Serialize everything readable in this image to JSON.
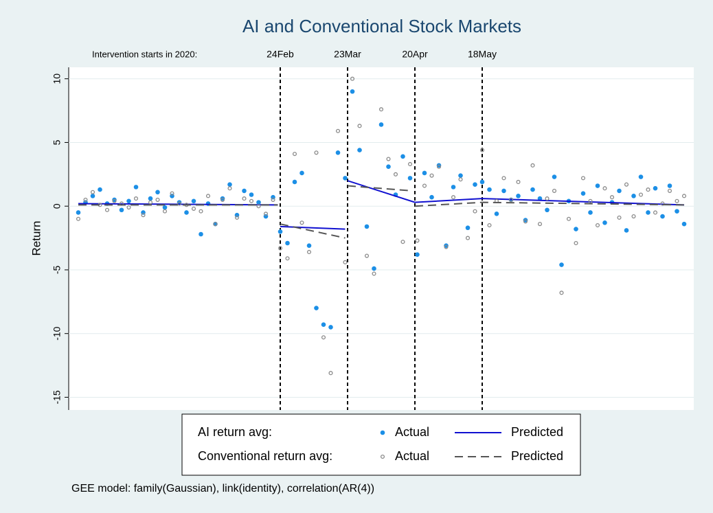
{
  "chart_data": {
    "type": "scatter",
    "title": "AI and Conventional Stock Markets",
    "y_label": "Return",
    "annotation": "Intervention starts in 2020:",
    "note": "GEE model: family(Gaussian), link(identity), correlation(AR(4))",
    "xlim": [
      -88,
      172
    ],
    "ylim": [
      -16,
      10.9
    ],
    "yticks": [
      10,
      5,
      0,
      -5,
      -10,
      -15
    ],
    "grid": true,
    "vlines": [
      {
        "x": 0,
        "label": "24Feb"
      },
      {
        "x": 28,
        "label": "23Mar"
      },
      {
        "x": 56,
        "label": "20Apr"
      },
      {
        "x": 84,
        "label": "18May"
      }
    ],
    "x": [
      -84,
      -81,
      -78,
      -75,
      -72,
      -69,
      -66,
      -63,
      -60,
      -57,
      -54,
      -51,
      -48,
      -45,
      -42,
      -39,
      -36,
      -33,
      -30,
      -27,
      -24,
      -21,
      -18,
      -15,
      -12,
      -9,
      -6,
      -3,
      0,
      3,
      6,
      9,
      12,
      15,
      18,
      21,
      24,
      27,
      30,
      33,
      36,
      39,
      42,
      45,
      48,
      51,
      54,
      57,
      60,
      63,
      66,
      69,
      72,
      75,
      78,
      81,
      84,
      87,
      90,
      93,
      96,
      99,
      102,
      105,
      108,
      111,
      114,
      117,
      120,
      123,
      126,
      129,
      132,
      135,
      138,
      141,
      144,
      147,
      150,
      153,
      156,
      159,
      162,
      165,
      168
    ],
    "groups": [
      {
        "label": "AI return avg:",
        "series": [
          {
            "name": "Actual",
            "style": "points",
            "color": "#1c8fe6",
            "values": [
              -0.5,
              0.3,
              0.8,
              1.3,
              0.2,
              0.5,
              -0.3,
              0.4,
              1.5,
              -0.5,
              0.6,
              1.1,
              -0.1,
              0.8,
              0.3,
              -0.5,
              0.4,
              -2.2,
              0.2,
              -1.4,
              0.6,
              1.7,
              -0.7,
              1.2,
              0.9,
              0.3,
              -0.8,
              0.7,
              -2.0,
              -2.9,
              1.9,
              2.6,
              -3.1,
              -8.0,
              -9.3,
              -9.5,
              4.2,
              2.2,
              9.0,
              4.4,
              -1.6,
              -4.9,
              6.4,
              3.1,
              0.9,
              3.9,
              2.2,
              -3.8,
              2.6,
              0.7,
              3.2,
              -3.1,
              1.5,
              2.4,
              -1.7,
              1.7,
              1.9,
              1.3,
              -0.6,
              1.2,
              0.5,
              0.8,
              -1.1,
              1.3,
              0.6,
              -0.3,
              2.3,
              -4.6,
              0.4,
              -1.8,
              1.0,
              -0.5,
              1.6,
              -1.3,
              0.3,
              1.2,
              -1.9,
              0.8,
              2.3,
              -0.5,
              1.4,
              -0.8,
              1.6,
              -0.4,
              -1.4
            ]
          },
          {
            "name": "Predicted",
            "style": "line",
            "color": "#1010d0",
            "x": [
              -84,
              -1,
              null,
              0,
              27,
              null,
              28,
              56,
              84,
              168
            ],
            "values": [
              0.2,
              0.1,
              null,
              -1.6,
              -1.8,
              null,
              2.0,
              0.3,
              0.6,
              0.1
            ]
          }
        ]
      },
      {
        "label": "Conventional return avg:",
        "series": [
          {
            "name": "Actual",
            "style": "points",
            "color": "#8a8a8a",
            "values": [
              -1.0,
              0.5,
              1.1,
              0.1,
              -0.3,
              0.4,
              0.2,
              -0.1,
              0.6,
              -0.7,
              0.3,
              0.5,
              -0.4,
              1.0,
              0.2,
              0.1,
              -0.2,
              -0.4,
              0.8,
              -1.4,
              0.5,
              1.4,
              -0.9,
              0.6,
              0.4,
              0.0,
              -0.6,
              0.5,
              -3.3,
              -4.1,
              4.1,
              -1.3,
              -3.6,
              4.2,
              -10.3,
              -13.1,
              5.9,
              -4.4,
              10.0,
              6.3,
              -3.9,
              -5.3,
              7.6,
              3.7,
              2.5,
              -2.8,
              3.3,
              -2.7,
              1.6,
              2.4,
              3.1,
              -3.2,
              0.7,
              2.1,
              -2.5,
              -0.4,
              4.4,
              -1.5,
              0.4,
              2.2,
              0.5,
              1.9,
              -1.2,
              3.2,
              -1.4,
              0.6,
              1.2,
              -6.8,
              -1.0,
              -2.9,
              2.2,
              0.4,
              -1.5,
              1.4,
              0.7,
              -0.9,
              1.7,
              -0.8,
              0.9,
              1.3,
              -0.5,
              0.2,
              1.2,
              0.4,
              0.8
            ]
          },
          {
            "name": "Predicted",
            "style": "dashed",
            "color": "#555555",
            "x": [
              -84,
              -1,
              null,
              0,
              27,
              null,
              28,
              55,
              null,
              56,
              84,
              168
            ],
            "values": [
              0.1,
              0.1,
              null,
              -1.4,
              -2.5,
              null,
              1.6,
              1.2,
              null,
              0.0,
              0.3,
              0.1
            ]
          }
        ]
      }
    ]
  }
}
